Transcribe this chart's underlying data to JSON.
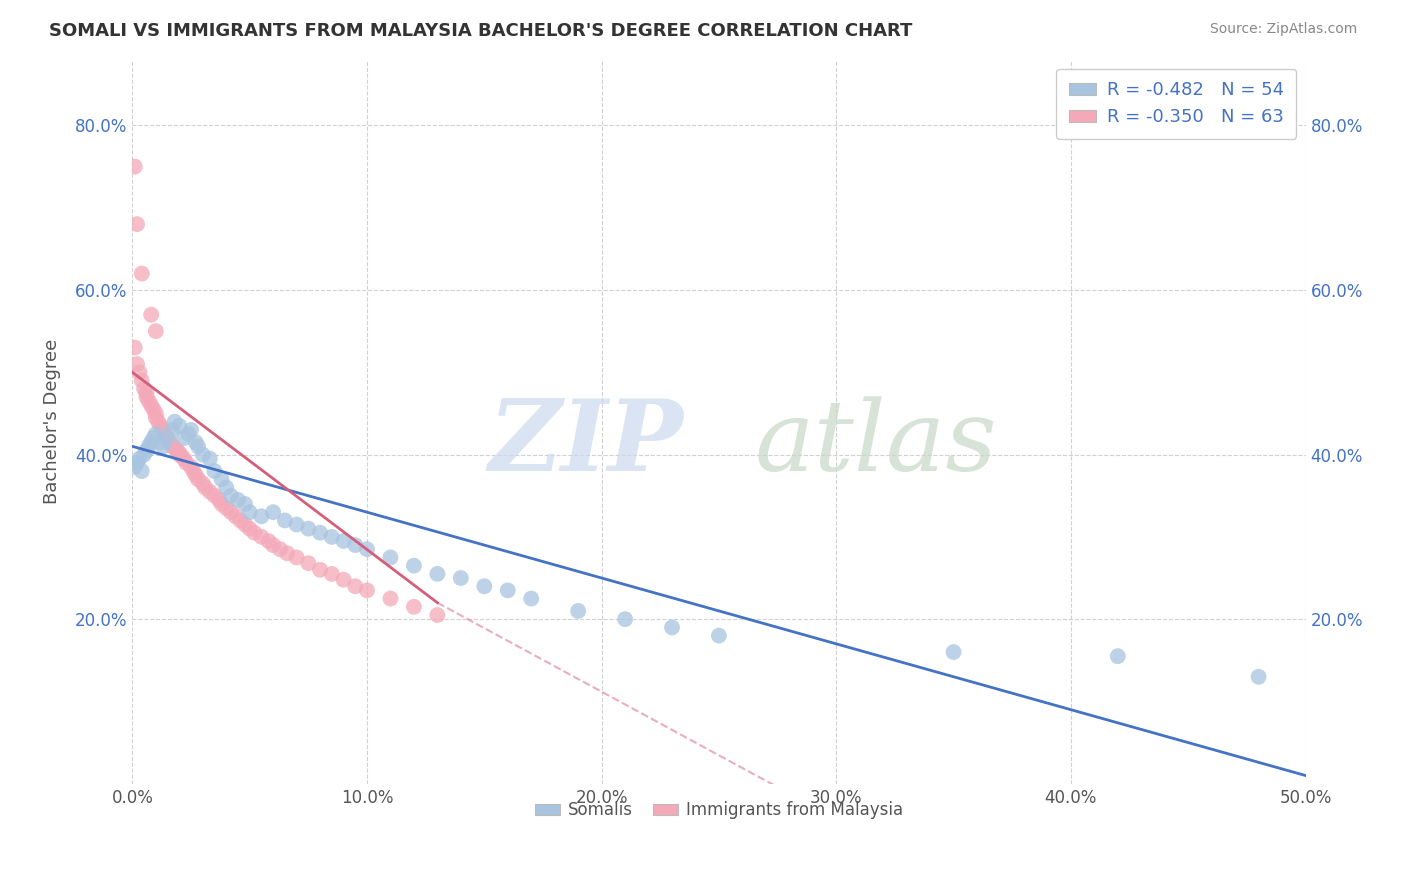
{
  "title": "SOMALI VS IMMIGRANTS FROM MALAYSIA BACHELOR'S DEGREE CORRELATION CHART",
  "source": "Source: ZipAtlas.com",
  "ylabel": "Bachelor's Degree",
  "xlim": [
    0.0,
    0.5
  ],
  "ylim": [
    0.0,
    0.88
  ],
  "xticks": [
    0.0,
    0.1,
    0.2,
    0.3,
    0.4,
    0.5
  ],
  "yticks": [
    0.2,
    0.4,
    0.6,
    0.8
  ],
  "ytick_labels_left": [
    "20.0%",
    "40.0%",
    "60.0%",
    "80.0%"
  ],
  "ytick_labels_right": [
    "20.0%",
    "40.0%",
    "60.0%",
    "80.0%"
  ],
  "xtick_labels": [
    "0.0%",
    "10.0%",
    "20.0%",
    "30.0%",
    "40.0%",
    "50.0%"
  ],
  "legend_r1": "R = -0.482",
  "legend_n1": "N = 54",
  "legend_r2": "R = -0.350",
  "legend_n2": "N = 63",
  "somali_color": "#a8c4e0",
  "malaysia_color": "#f4a8b8",
  "somali_line_color": "#4472c4",
  "malaysia_line_color": "#d45f7a",
  "background_color": "#ffffff",
  "grid_color": "#cccccc",
  "somali_x": [
    0.001,
    0.002,
    0.003,
    0.004,
    0.005,
    0.006,
    0.007,
    0.008,
    0.009,
    0.01,
    0.012,
    0.013,
    0.015,
    0.017,
    0.018,
    0.02,
    0.022,
    0.024,
    0.025,
    0.027,
    0.028,
    0.03,
    0.033,
    0.035,
    0.038,
    0.04,
    0.042,
    0.045,
    0.048,
    0.05,
    0.055,
    0.06,
    0.065,
    0.07,
    0.075,
    0.08,
    0.085,
    0.09,
    0.095,
    0.1,
    0.11,
    0.12,
    0.13,
    0.14,
    0.15,
    0.16,
    0.17,
    0.19,
    0.21,
    0.23,
    0.25,
    0.35,
    0.42,
    0.48
  ],
  "somali_y": [
    0.385,
    0.39,
    0.395,
    0.38,
    0.4,
    0.405,
    0.41,
    0.415,
    0.42,
    0.425,
    0.415,
    0.41,
    0.42,
    0.43,
    0.44,
    0.435,
    0.42,
    0.425,
    0.43,
    0.415,
    0.41,
    0.4,
    0.395,
    0.38,
    0.37,
    0.36,
    0.35,
    0.345,
    0.34,
    0.33,
    0.325,
    0.33,
    0.32,
    0.315,
    0.31,
    0.305,
    0.3,
    0.295,
    0.29,
    0.285,
    0.275,
    0.265,
    0.255,
    0.25,
    0.24,
    0.235,
    0.225,
    0.21,
    0.2,
    0.19,
    0.18,
    0.16,
    0.155,
    0.13
  ],
  "malaysia_x": [
    0.001,
    0.002,
    0.003,
    0.004,
    0.005,
    0.006,
    0.006,
    0.007,
    0.008,
    0.009,
    0.01,
    0.01,
    0.011,
    0.012,
    0.013,
    0.014,
    0.015,
    0.016,
    0.017,
    0.018,
    0.019,
    0.02,
    0.02,
    0.021,
    0.022,
    0.023,
    0.025,
    0.026,
    0.027,
    0.028,
    0.03,
    0.031,
    0.033,
    0.035,
    0.037,
    0.038,
    0.04,
    0.042,
    0.044,
    0.046,
    0.048,
    0.05,
    0.052,
    0.055,
    0.058,
    0.06,
    0.063,
    0.066,
    0.07,
    0.075,
    0.08,
    0.085,
    0.09,
    0.095,
    0.1,
    0.11,
    0.12,
    0.13,
    0.001,
    0.002,
    0.004,
    0.008,
    0.01
  ],
  "malaysia_y": [
    0.53,
    0.51,
    0.5,
    0.49,
    0.48,
    0.47,
    0.475,
    0.465,
    0.46,
    0.455,
    0.45,
    0.445,
    0.44,
    0.435,
    0.43,
    0.425,
    0.42,
    0.415,
    0.41,
    0.408,
    0.405,
    0.4,
    0.402,
    0.398,
    0.395,
    0.39,
    0.385,
    0.38,
    0.375,
    0.37,
    0.365,
    0.36,
    0.355,
    0.35,
    0.345,
    0.34,
    0.335,
    0.33,
    0.325,
    0.32,
    0.315,
    0.31,
    0.305,
    0.3,
    0.295,
    0.29,
    0.285,
    0.28,
    0.275,
    0.268,
    0.26,
    0.255,
    0.248,
    0.24,
    0.235,
    0.225,
    0.215,
    0.205,
    0.75,
    0.68,
    0.62,
    0.57,
    0.55
  ]
}
